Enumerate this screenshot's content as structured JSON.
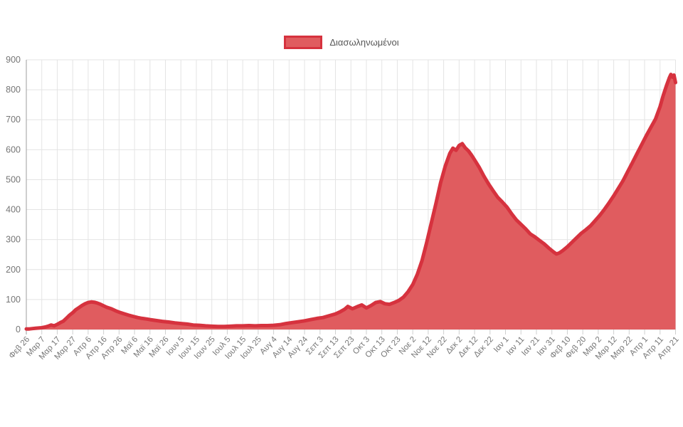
{
  "legend": {
    "label": "Διασωληνωμένοι"
  },
  "chart_data": {
    "type": "area",
    "title": "",
    "xlabel": "",
    "ylabel": "",
    "legend_position": "top-center",
    "grid": true,
    "ylim": [
      0,
      900
    ],
    "y_ticks": [
      0,
      100,
      200,
      300,
      400,
      500,
      600,
      700,
      800,
      900
    ],
    "x_tick_labels": [
      "Φεβ 26",
      "Μαρ 7",
      "Μαρ 17",
      "Μαρ 27",
      "Απρ 6",
      "Απρ 16",
      "Απρ 26",
      "Μαϊ 6",
      "Μαϊ 16",
      "Μαϊ 26",
      "Ιουν 5",
      "Ιουν 15",
      "Ιουν 25",
      "Ιουλ 5",
      "Ιουλ 15",
      "Ιουλ 25",
      "Αυγ 4",
      "Αυγ 14",
      "Αυγ 24",
      "Σεπ 3",
      "Σεπ 13",
      "Σεπ 23",
      "Οκτ 3",
      "Οκτ 13",
      "Οκτ 23",
      "Νοε 2",
      "Νοε 12",
      "Νοε 22",
      "Δεκ 2",
      "Δεκ 12",
      "Δεκ 22",
      "Ιαν 1",
      "Ιαν 11",
      "Ιαν 21",
      "Ιαν 31",
      "Φεβ 10",
      "Φεβ 20",
      "Μαρ 2",
      "Μαρ 12",
      "Μαρ 22",
      "Απρ 1",
      "Απρ 11",
      "Απρ 21"
    ],
    "x_tick_days": [
      0,
      10,
      20,
      30,
      40,
      50,
      60,
      70,
      80,
      90,
      100,
      110,
      120,
      130,
      140,
      150,
      160,
      170,
      180,
      190,
      200,
      210,
      220,
      230,
      240,
      250,
      260,
      270,
      280,
      290,
      300,
      310,
      320,
      330,
      340,
      350,
      360,
      370,
      380,
      390,
      400,
      410,
      420
    ],
    "x_range_days": [
      0,
      420
    ],
    "series": [
      {
        "name": "Διασωληνωμένοι",
        "points": [
          [
            0,
            2
          ],
          [
            2,
            2
          ],
          [
            4,
            3
          ],
          [
            6,
            4
          ],
          [
            8,
            5
          ],
          [
            10,
            6
          ],
          [
            12,
            8
          ],
          [
            14,
            11
          ],
          [
            16,
            15
          ],
          [
            18,
            12
          ],
          [
            20,
            17
          ],
          [
            22,
            23
          ],
          [
            24,
            28
          ],
          [
            26,
            38
          ],
          [
            28,
            48
          ],
          [
            30,
            56
          ],
          [
            32,
            66
          ],
          [
            34,
            73
          ],
          [
            36,
            80
          ],
          [
            38,
            86
          ],
          [
            40,
            90
          ],
          [
            42,
            92
          ],
          [
            44,
            91
          ],
          [
            46,
            88
          ],
          [
            48,
            84
          ],
          [
            50,
            79
          ],
          [
            52,
            74
          ],
          [
            55,
            69
          ],
          [
            58,
            62
          ],
          [
            60,
            58
          ],
          [
            63,
            53
          ],
          [
            66,
            48
          ],
          [
            69,
            44
          ],
          [
            72,
            40
          ],
          [
            75,
            37
          ],
          [
            78,
            35
          ],
          [
            80,
            33
          ],
          [
            84,
            30
          ],
          [
            88,
            27
          ],
          [
            92,
            25
          ],
          [
            96,
            22
          ],
          [
            100,
            20
          ],
          [
            104,
            18
          ],
          [
            108,
            15
          ],
          [
            112,
            14
          ],
          [
            116,
            12
          ],
          [
            120,
            11
          ],
          [
            124,
            10
          ],
          [
            128,
            10
          ],
          [
            132,
            11
          ],
          [
            136,
            12
          ],
          [
            140,
            12
          ],
          [
            144,
            13
          ],
          [
            148,
            12
          ],
          [
            152,
            13
          ],
          [
            156,
            13
          ],
          [
            160,
            14
          ],
          [
            164,
            16
          ],
          [
            168,
            20
          ],
          [
            172,
            23
          ],
          [
            176,
            26
          ],
          [
            180,
            29
          ],
          [
            184,
            33
          ],
          [
            188,
            37
          ],
          [
            192,
            40
          ],
          [
            196,
            46
          ],
          [
            200,
            52
          ],
          [
            203,
            59
          ],
          [
            206,
            68
          ],
          [
            208,
            77
          ],
          [
            211,
            69
          ],
          [
            214,
            76
          ],
          [
            217,
            82
          ],
          [
            220,
            72
          ],
          [
            223,
            80
          ],
          [
            226,
            90
          ],
          [
            229,
            93
          ],
          [
            232,
            86
          ],
          [
            235,
            84
          ],
          [
            238,
            90
          ],
          [
            241,
            97
          ],
          [
            244,
            108
          ],
          [
            247,
            126
          ],
          [
            250,
            150
          ],
          [
            253,
            185
          ],
          [
            256,
            230
          ],
          [
            259,
            290
          ],
          [
            262,
            355
          ],
          [
            265,
            420
          ],
          [
            268,
            490
          ],
          [
            271,
            545
          ],
          [
            274,
            588
          ],
          [
            276,
            605
          ],
          [
            278,
            598
          ],
          [
            280,
            614
          ],
          [
            282,
            620
          ],
          [
            284,
            606
          ],
          [
            286,
            596
          ],
          [
            288,
            582
          ],
          [
            290,
            566
          ],
          [
            293,
            541
          ],
          [
            296,
            512
          ],
          [
            299,
            486
          ],
          [
            302,
            463
          ],
          [
            305,
            441
          ],
          [
            308,
            425
          ],
          [
            311,
            408
          ],
          [
            314,
            386
          ],
          [
            317,
            366
          ],
          [
            320,
            351
          ],
          [
            323,
            336
          ],
          [
            326,
            319
          ],
          [
            329,
            309
          ],
          [
            332,
            297
          ],
          [
            335,
            286
          ],
          [
            338,
            272
          ],
          [
            341,
            259
          ],
          [
            343,
            252
          ],
          [
            345,
            256
          ],
          [
            347,
            263
          ],
          [
            350,
            276
          ],
          [
            353,
            291
          ],
          [
            356,
            306
          ],
          [
            359,
            321
          ],
          [
            362,
            333
          ],
          [
            365,
            346
          ],
          [
            368,
            363
          ],
          [
            371,
            381
          ],
          [
            374,
            401
          ],
          [
            377,
            423
          ],
          [
            380,
            446
          ],
          [
            383,
            471
          ],
          [
            386,
            496
          ],
          [
            389,
            526
          ],
          [
            392,
            556
          ],
          [
            395,
            586
          ],
          [
            398,
            616
          ],
          [
            401,
            646
          ],
          [
            404,
            674
          ],
          [
            407,
            702
          ],
          [
            410,
            744
          ],
          [
            412,
            780
          ],
          [
            414,
            812
          ],
          [
            416,
            840
          ],
          [
            417,
            851
          ],
          [
            418,
            842
          ],
          [
            419,
            849
          ],
          [
            420,
            824
          ]
        ]
      }
    ],
    "colors": {
      "line": "#d6323e",
      "fill": "#e05c5f",
      "grid": "#e4e4e4",
      "axis": "#9e9e9e",
      "tick": "#cfcfcf",
      "tick_text": "#767676"
    }
  }
}
